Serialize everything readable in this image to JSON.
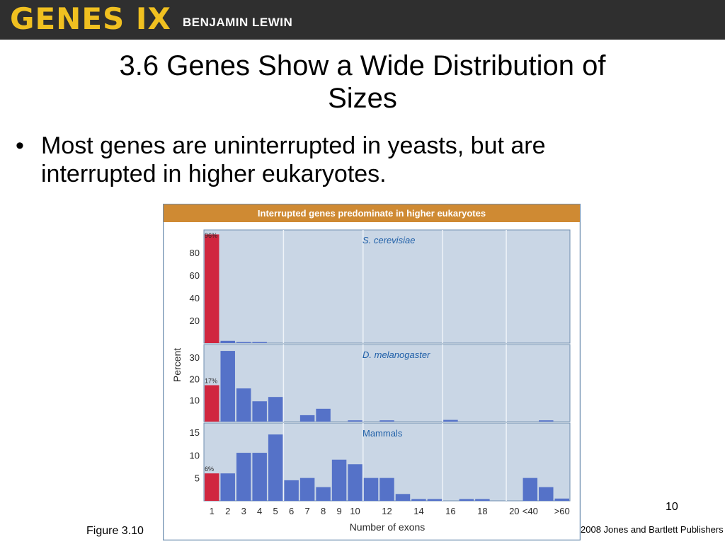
{
  "banner": {
    "logo": "GENES IX",
    "author": "BENJAMIN LEWIN"
  },
  "slide": {
    "title_line1": "3.6 Genes Show a Wide Distribution of",
    "title_line2": "Sizes",
    "bullet_symbol": "•",
    "bullet_line1": "Most genes are uninterrupted in yeasts, but are",
    "bullet_line2": "interrupted in higher eukaryotes.",
    "caption": "Figure 3.10",
    "page_number": "10",
    "copyright": "2008 Jones and Bartlett Publishers"
  },
  "chart_data": {
    "type": "bar",
    "title": "Interrupted genes predominate in higher eukaryotes",
    "xlabel": "Number of exons",
    "ylabel": "Percent",
    "x_tick_labels": [
      "1",
      "2",
      "3",
      "4",
      "5",
      "6",
      "7",
      "8",
      "9",
      "10",
      "12",
      "14",
      "16",
      "18",
      "20",
      "<40",
      ">60"
    ],
    "grid": "vertical lines",
    "colors": {
      "first_bar": "#d0263f",
      "bars": "#5572c8",
      "header_bg": "#cf8a33",
      "panel_bg": "#c9d6e5",
      "frame": "#6f8fb0"
    },
    "panels": [
      {
        "name": "S. cerevisiae",
        "ylim": [
          0,
          100
        ],
        "yticks": [
          20,
          40,
          60,
          80
        ],
        "first_label": "96%",
        "values": [
          96,
          2,
          0.2,
          0.2,
          0,
          0,
          0,
          0,
          0,
          0,
          0,
          0,
          0,
          0,
          0,
          0,
          0,
          0,
          0,
          0,
          0,
          0,
          0
        ]
      },
      {
        "name": "D. melanogaster",
        "ylim": [
          0,
          36
        ],
        "yticks": [
          10,
          20,
          30
        ],
        "first_label": "17%",
        "values": [
          17,
          33,
          15.5,
          9.5,
          11.5,
          0,
          3,
          6,
          0,
          0.6,
          0,
          0.6,
          0,
          0,
          0,
          0.8,
          0,
          0,
          0,
          0,
          0,
          0.6,
          0
        ]
      },
      {
        "name": "Mammals",
        "ylim": [
          0,
          17
        ],
        "yticks": [
          5,
          10,
          15
        ],
        "first_label": "6%",
        "values": [
          6,
          6,
          10.5,
          10.5,
          14.5,
          4.5,
          5,
          3,
          9,
          8,
          5,
          5,
          1.5,
          0.4,
          0.4,
          0,
          0.4,
          0.4,
          0,
          0,
          5,
          3,
          0.5
        ]
      }
    ]
  }
}
